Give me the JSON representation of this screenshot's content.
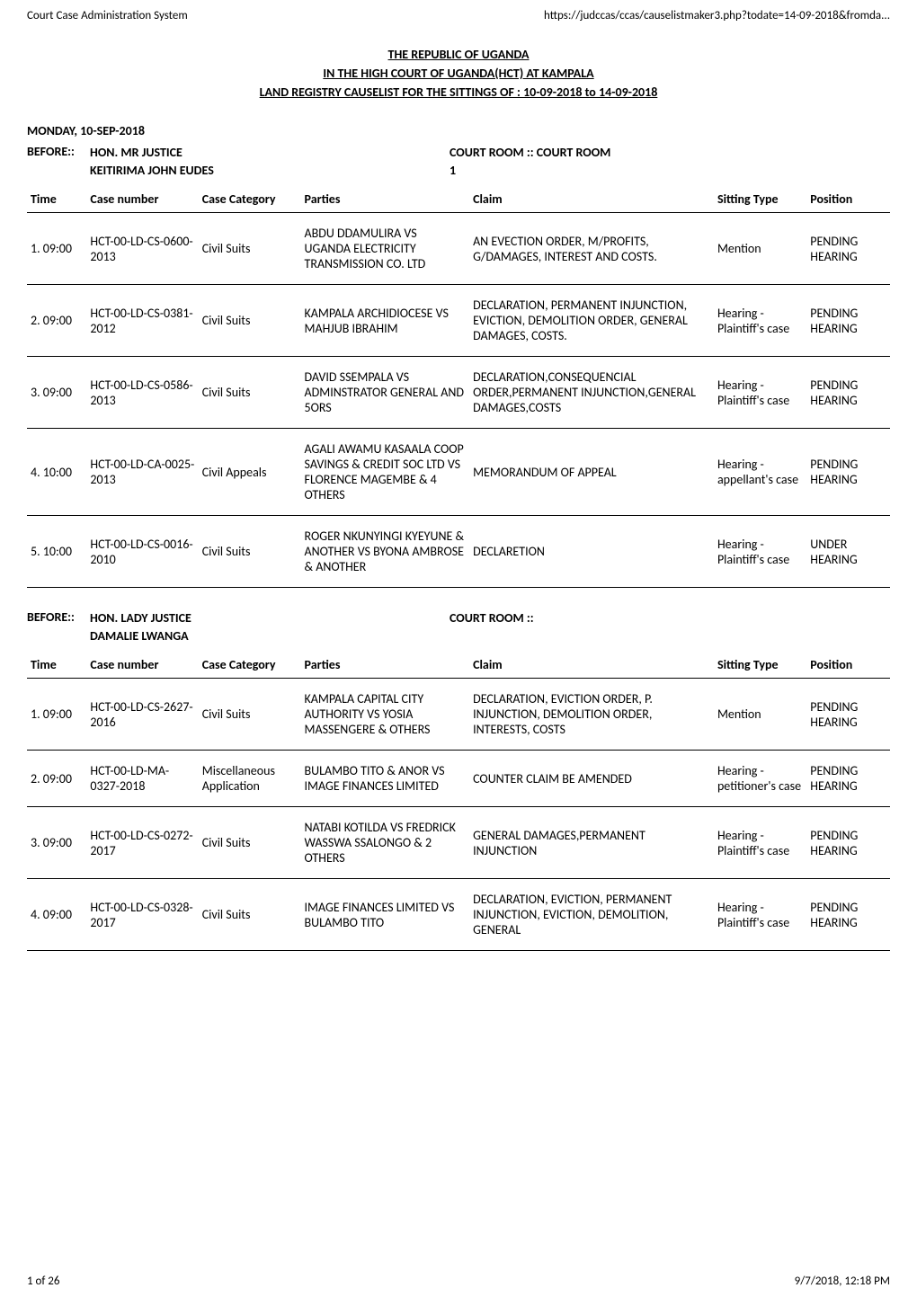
{
  "header": {
    "left": "Court Case Administration System",
    "right": "https://judccas/ccas/causelistmaker3.php?todate=14-09-2018&fromda..."
  },
  "footer": {
    "left": "1 of 26",
    "right": "9/7/2018, 12:18 PM"
  },
  "title": {
    "line1": "THE REPUBLIC OF UGANDA",
    "line2": "IN THE HIGH COURT OF UGANDA(HCT) AT KAMPALA",
    "line3": "LAND REGISTRY CAUSELIST FOR THE SITTINGS OF : 10-09-2018 to 14-09-2018"
  },
  "session_date": "MONDAY, 10-SEP-2018",
  "columns": {
    "time": "Time",
    "case_number": "Case number",
    "case_category": "Case Category",
    "parties": "Parties",
    "claim": "Claim",
    "sitting_type": "Sitting Type",
    "position": "Position"
  },
  "before_label": "BEFORE::",
  "sections": [
    {
      "judge_line1": "HON. MR JUSTICE",
      "judge_line2": "KEITIRIMA JOHN EUDES",
      "court_line1": "COURT ROOM :: COURT ROOM",
      "court_line2": "1",
      "rows": [
        {
          "idx": "1.",
          "time": "09:00",
          "case_number": "HCT-00-LD-CS-0600-2013",
          "category": "Civil Suits",
          "parties": "ABDU DDAMULIRA VS UGANDA ELECTRICITY TRANSMISSION CO. LTD",
          "claim": "AN EVECTION ORDER, M/PROFITS, G/DAMAGES, INTEREST AND COSTS.",
          "sitting": "Mention",
          "position": "PENDING HEARING"
        },
        {
          "idx": "2.",
          "time": "09:00",
          "case_number": "HCT-00-LD-CS-0381-2012",
          "category": "Civil Suits",
          "parties": "KAMPALA ARCHIDIOCESE VS MAHJUB IBRAHIM",
          "claim": "DECLARATION, PERMANENT INJUNCTION, EVICTION, DEMOLITION ORDER, GENERAL DAMAGES, COSTS.",
          "sitting": "Hearing - Plaintiff's case",
          "position": "PENDING HEARING"
        },
        {
          "idx": "3.",
          "time": "09:00",
          "case_number": "HCT-00-LD-CS-0586-2013",
          "category": "Civil Suits",
          "parties": "DAVID SSEMPALA VS ADMINSTRATOR GENERAL AND 5ORS",
          "claim": "DECLARATION,CONSEQUENCIAL ORDER,PERMANENT INJUNCTION,GENERAL DAMAGES,COSTS",
          "sitting": "Hearing - Plaintiff's case",
          "position": "PENDING HEARING"
        },
        {
          "idx": "4.",
          "time": "10:00",
          "case_number": "HCT-00-LD-CA-0025-2013",
          "category": "Civil Appeals",
          "parties": "AGALI AWAMU KASAALA COOP SAVINGS & CREDIT SOC LTD VS FLORENCE MAGEMBE & 4 OTHERS",
          "claim": "MEMORANDUM OF APPEAL",
          "sitting": "Hearing - appellant's case",
          "position": "PENDING HEARING"
        },
        {
          "idx": "5.",
          "time": "10:00",
          "case_number": "HCT-00-LD-CS-0016-2010",
          "category": "Civil Suits",
          "parties": "ROGER NKUNYINGI KYEYUNE & ANOTHER VS BYONA AMBROSE & ANOTHER",
          "claim": "DECLARETION",
          "sitting": "Hearing - Plaintiff's case",
          "position": "UNDER HEARING"
        }
      ]
    },
    {
      "judge_line1": "HON. LADY JUSTICE",
      "judge_line2": "DAMALIE LWANGA",
      "court_line1": "COURT ROOM ::",
      "court_line2": "",
      "rows": [
        {
          "idx": "1.",
          "time": "09:00",
          "case_number": "HCT-00-LD-CS-2627-2016",
          "category": "Civil Suits",
          "parties": "KAMPALA CAPITAL CITY AUTHORITY VS YOSIA MASSENGERE & OTHERS",
          "claim": "DECLARATION, EVICTION ORDER, P. INJUNCTION, DEMOLITION ORDER, INTERESTS, COSTS",
          "sitting": "Mention",
          "position": "PENDING HEARING"
        },
        {
          "idx": "2.",
          "time": "09:00",
          "case_number": "HCT-00-LD-MA-0327-2018",
          "category": "Miscellaneous Application",
          "parties": "BULAMBO TITO & ANOR VS IMAGE FINANCES LIMITED",
          "claim": "COUNTER CLAIM BE AMENDED",
          "sitting": "Hearing - petitioner's case",
          "position": "PENDING HEARING"
        },
        {
          "idx": "3.",
          "time": "09:00",
          "case_number": "HCT-00-LD-CS-0272-2017",
          "category": "Civil Suits",
          "parties": "NATABI KOTILDA VS FREDRICK WASSWA SSALONGO & 2 OTHERS",
          "claim": "GENERAL DAMAGES,PERMANENT INJUNCTION",
          "sitting": "Hearing - Plaintiff's case",
          "position": "PENDING HEARING"
        },
        {
          "idx": "4.",
          "time": "09:00",
          "case_number": "HCT-00-LD-CS-0328-2017",
          "category": "Civil Suits",
          "parties": "IMAGE FINANCES LIMITED VS BULAMBO TITO",
          "claim": "DECLARATION, EVICTION, PERMANENT INJUNCTION, EVICTION, DEMOLITION, GENERAL",
          "sitting": "Hearing - Plaintiff's case",
          "position": "PENDING HEARING"
        }
      ]
    }
  ]
}
